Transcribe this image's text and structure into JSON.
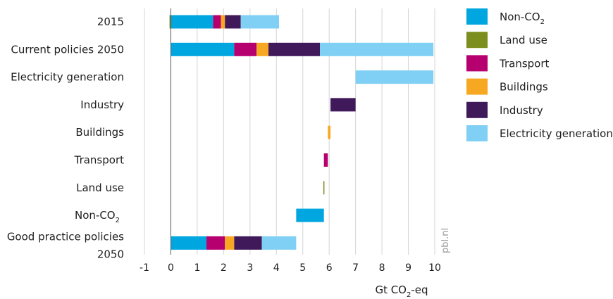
{
  "chart_data": {
    "type": "bar",
    "orientation": "horizontal",
    "stacked": "waterfall",
    "categories": [
      "2015",
      "Current policies 2050",
      "Electricity generation",
      "Industry",
      "Buildings",
      "Transport",
      "Land use",
      "Non-CO",
      "Good practice policies 2050"
    ],
    "category_subscripts": [
      "",
      "",
      "",
      "",
      "",
      "",
      "",
      "2",
      ""
    ],
    "series": [
      {
        "name": "Non-CO",
        "sub": "2",
        "color": "#00a6e0"
      },
      {
        "name": "Land use",
        "sub": "",
        "color": "#7b8e1e"
      },
      {
        "name": "Transport",
        "sub": "",
        "color": "#b7006f"
      },
      {
        "name": "Buildings",
        "sub": "",
        "color": "#f7a823"
      },
      {
        "name": "Industry",
        "sub": "",
        "color": "#40195a"
      },
      {
        "name": "Electricity generation",
        "sub": "",
        "color": "#7fd0f4"
      }
    ],
    "bars": [
      {
        "category": "2015",
        "segments": [
          {
            "series": "Land use",
            "start": -0.05,
            "end": 0.0
          },
          {
            "series": "Non-CO",
            "start": 0.0,
            "end": 1.6
          },
          {
            "series": "Transport",
            "start": 1.6,
            "end": 1.9
          },
          {
            "series": "Buildings",
            "start": 1.9,
            "end": 2.05
          },
          {
            "series": "Industry",
            "start": 2.05,
            "end": 2.65
          },
          {
            "series": "Electricity generation",
            "start": 2.65,
            "end": 4.1
          }
        ]
      },
      {
        "category": "Current policies 2050",
        "segments": [
          {
            "series": "Non-CO",
            "start": 0.0,
            "end": 2.4
          },
          {
            "series": "Transport",
            "start": 2.4,
            "end": 3.25
          },
          {
            "series": "Buildings",
            "start": 3.25,
            "end": 3.7
          },
          {
            "series": "Industry",
            "start": 3.7,
            "end": 5.65
          },
          {
            "series": "Electricity generation",
            "start": 5.65,
            "end": 9.95
          }
        ]
      },
      {
        "category": "Electricity generation",
        "segments": [
          {
            "series": "Electricity generation",
            "start": 7.0,
            "end": 9.95
          }
        ]
      },
      {
        "category": "Industry",
        "segments": [
          {
            "series": "Industry",
            "start": 6.05,
            "end": 7.0
          }
        ]
      },
      {
        "category": "Buildings",
        "segments": [
          {
            "series": "Buildings",
            "start": 5.95,
            "end": 6.05
          }
        ]
      },
      {
        "category": "Transport",
        "segments": [
          {
            "series": "Transport",
            "start": 5.8,
            "end": 5.95
          }
        ]
      },
      {
        "category": "Land use",
        "segments": [
          {
            "series": "Land use",
            "start": 5.78,
            "end": 5.81
          }
        ]
      },
      {
        "category": "Non-CO",
        "segments": [
          {
            "series": "Non-CO",
            "start": 4.75,
            "end": 5.8
          }
        ]
      },
      {
        "category": "Good practice policies 2050",
        "segments": [
          {
            "series": "Non-CO",
            "start": 0.0,
            "end": 1.35
          },
          {
            "series": "Transport",
            "start": 1.35,
            "end": 2.05
          },
          {
            "series": "Buildings",
            "start": 2.05,
            "end": 2.4
          },
          {
            "series": "Industry",
            "start": 2.4,
            "end": 3.45
          },
          {
            "series": "Electricity generation",
            "start": 3.45,
            "end": 4.75
          }
        ]
      }
    ],
    "x_ticks": [
      -1,
      0,
      1,
      2,
      3,
      4,
      5,
      6,
      7,
      8,
      9,
      10
    ],
    "xlim": [
      -1,
      10
    ],
    "xlabel": "Gt CO",
    "xlabel_sub": "2",
    "xlabel_suffix": "-eq",
    "grid": "vertical",
    "legend_position": "right"
  },
  "watermark": "pbl.nl"
}
